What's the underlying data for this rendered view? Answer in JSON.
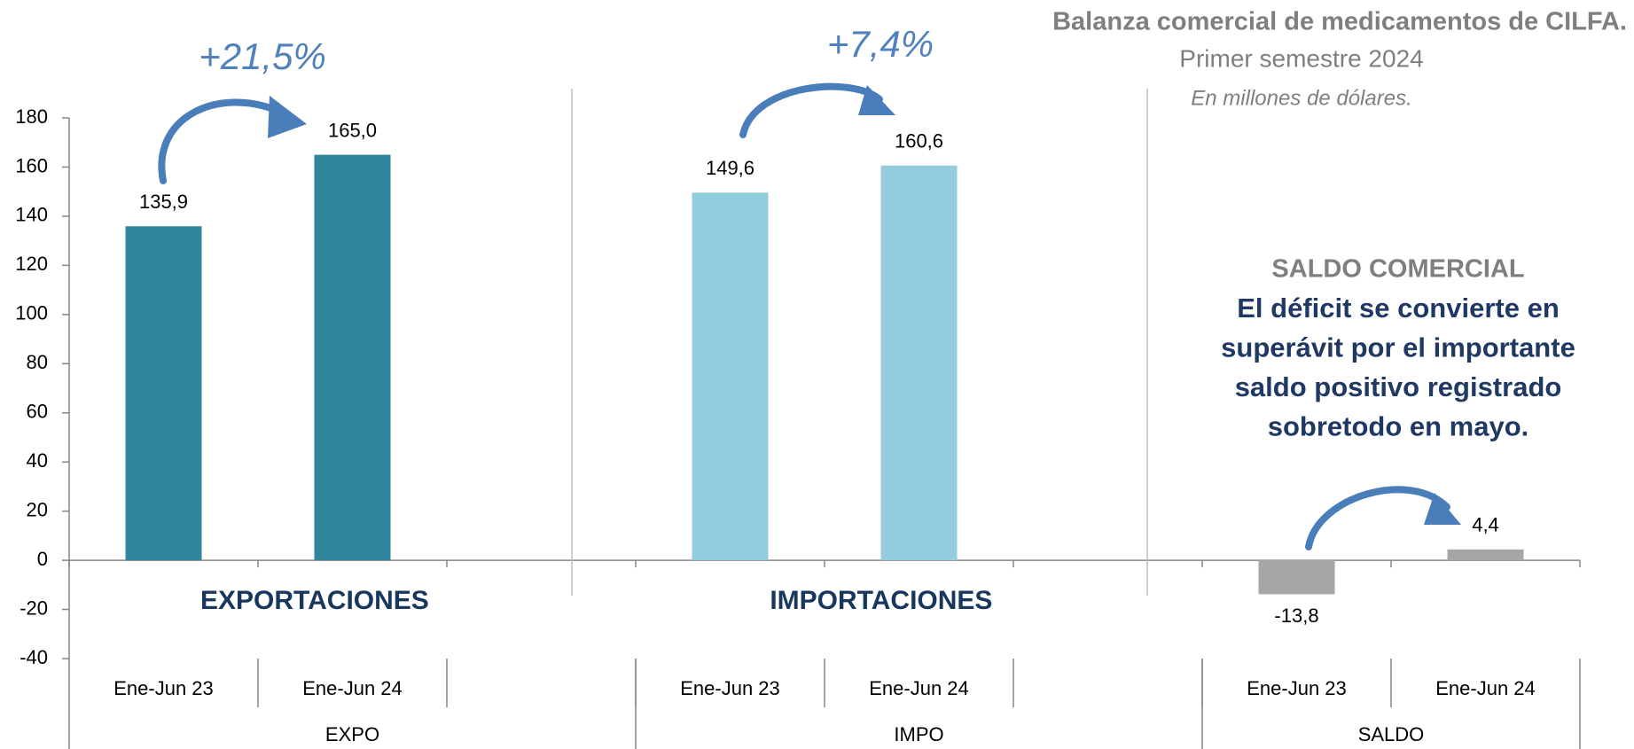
{
  "chart_data": {
    "type": "bar",
    "title": "Balanza comercial de medicamentos de CILFA.",
    "subtitle": "Primer semestre 2024",
    "note": "En millones de dólares.",
    "categories": [
      "Ene-Jun 23",
      "Ene-Jun 24",
      null,
      "Ene-Jun 23",
      "Ene-Jun 24",
      null,
      "Ene-Jun 23",
      "Ene-Jun 24"
    ],
    "values": [
      135.9,
      165.0,
      null,
      149.6,
      160.6,
      null,
      -13.8,
      4.4
    ],
    "value_labels": [
      "135,9",
      "165,0",
      null,
      "149,6",
      "160,6",
      null,
      "-13,8",
      "4,4"
    ],
    "groups": [
      {
        "label": "EXPO",
        "size": 3,
        "color": "#31859c",
        "heading": "EXPORTACIONES",
        "change": "+21,5%"
      },
      {
        "label": "IMPO",
        "size": 3,
        "color": "#93cddd",
        "heading": "IMPORTACIONES",
        "change": "+7,4%"
      },
      {
        "label": "SALDO",
        "size": 2,
        "color": "#a6a6a6"
      }
    ],
    "saldo_heading": "SALDO COMERCIAL",
    "saldo_text": [
      "El déficit se convierte en",
      "superávit por el importante",
      "saldo positivo registrado",
      "sobretodo en mayo."
    ],
    "ylim": [
      -40,
      180
    ],
    "yticks": [
      -40,
      -20,
      0,
      20,
      40,
      60,
      80,
      100,
      120,
      140,
      160,
      180
    ],
    "grid": false
  }
}
